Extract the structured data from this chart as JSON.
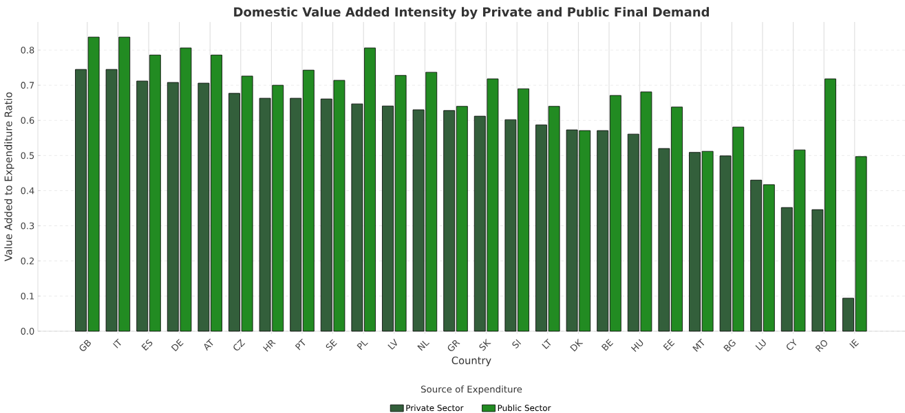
{
  "chart_data": {
    "type": "bar",
    "title": "Domestic Value Added Intensity by Private and Public Final Demand",
    "xlabel": "Country",
    "ylabel": "Value Added to Expenditure Ratio",
    "legend_title": "Source of Expenditure",
    "legend": "bottom",
    "grid": true,
    "categories": [
      "GB",
      "IT",
      "ES",
      "DE",
      "AT",
      "CZ",
      "HR",
      "PT",
      "SE",
      "PL",
      "LV",
      "NL",
      "GR",
      "SK",
      "SI",
      "LT",
      "DK",
      "BE",
      "HU",
      "EE",
      "MT",
      "BG",
      "LU",
      "CY",
      "RO",
      "IE"
    ],
    "ylim": [
      0,
      0.88
    ],
    "yticks": [
      {
        "value": 0,
        "label": "0.0"
      },
      0.1,
      0.2,
      0.3,
      0.4,
      0.5,
      0.6,
      0.7,
      0.8
    ],
    "series": [
      {
        "name": "Private Sector",
        "color": "#335f3b",
        "values": [
          0.745,
          0.745,
          0.712,
          0.708,
          0.706,
          0.677,
          0.663,
          0.663,
          0.661,
          0.647,
          0.641,
          0.63,
          0.628,
          0.612,
          0.602,
          0.587,
          0.573,
          0.571,
          0.561,
          0.52,
          0.509,
          0.499,
          0.43,
          0.352,
          0.346,
          0.094
        ]
      },
      {
        "name": "Public Sector",
        "color": "#228b22",
        "values": [
          0.837,
          0.837,
          0.786,
          0.806,
          0.786,
          0.726,
          0.7,
          0.743,
          0.714,
          0.806,
          0.728,
          0.737,
          0.64,
          0.718,
          0.69,
          0.64,
          0.571,
          0.671,
          0.681,
          0.638,
          0.512,
          0.581,
          0.417,
          0.516,
          0.718,
          0.497
        ]
      }
    ]
  }
}
